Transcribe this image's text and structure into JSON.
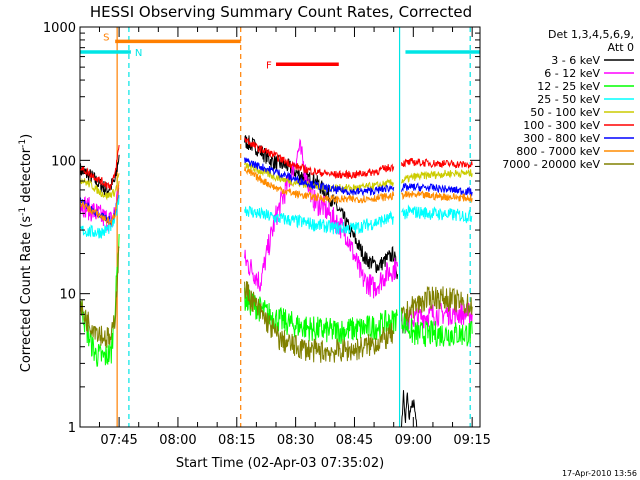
{
  "chart_data": {
    "type": "line",
    "title": "HESSI Observing Summary Count Rates, Corrected",
    "xlabel": "Start Time (02-Apr-03 07:35:02)",
    "ylabel": "Corrected Count Rate (s",
    "ylabel_sup1": "-1",
    "ylabel_mid": " detector",
    "ylabel_sup2": "-1",
    "ylabel_end": ")",
    "yscale": "log",
    "ylim": [
      1,
      1000
    ],
    "xlim": [
      "07:35:02",
      "09:17:00"
    ],
    "x_ticks": [
      "07:45",
      "08:00",
      "08:15",
      "08:30",
      "08:45",
      "09:00",
      "09:15"
    ],
    "y_ticks": [
      "1",
      "10",
      "100",
      "1000"
    ],
    "legend_position": "right",
    "legend_header": [
      "Det 1,3,4,5,6,9,",
      "Att 0"
    ],
    "timestamp": "17-Apr-2010 13:56",
    "flags": [
      {
        "label": "S",
        "start": "07:44:00",
        "end": "08:16:00",
        "value": 780,
        "color": "#ff7f00"
      },
      {
        "label": "N",
        "start": "07:35:02",
        "end": "07:48:00",
        "value": 650,
        "color": "#00e5e5"
      },
      {
        "label": "",
        "start": "08:58:00",
        "end": "09:17:00",
        "value": 650,
        "color": "#00e5e5"
      },
      {
        "label": "F",
        "start": "08:25:00",
        "end": "08:41:00",
        "value": 525,
        "color": "#ff0000"
      }
    ],
    "markers": [
      {
        "time": "07:44:30",
        "color": "#ff7f00",
        "style": "solid"
      },
      {
        "time": "07:47:30",
        "color": "#00e5e5",
        "style": "dashed"
      },
      {
        "time": "08:16:00",
        "color": "#ff7f00",
        "style": "dashed"
      },
      {
        "time": "08:56:30",
        "color": "#00e5e5",
        "style": "solid"
      },
      {
        "time": "09:14:30",
        "color": "#00e5e5",
        "style": "dashed"
      }
    ],
    "series": [
      {
        "name": "3 - 6 keV",
        "color": "#000000",
        "segments": [
          [
            [
              "07:35:02",
              85
            ],
            [
              "07:38",
              75
            ],
            [
              "07:40",
              66
            ],
            [
              "07:42",
              60
            ],
            [
              "07:44",
              70
            ],
            [
              "07:45",
              110
            ]
          ],
          [
            [
              "08:17",
              140
            ],
            [
              "08:20",
              125
            ],
            [
              "08:24",
              98
            ],
            [
              "08:28",
              90
            ],
            [
              "08:31",
              78
            ],
            [
              "08:35",
              70
            ],
            [
              "08:39",
              52
            ],
            [
              "08:42",
              38
            ],
            [
              "08:45",
              26
            ],
            [
              "08:48",
              18
            ],
            [
              "08:51",
              16
            ],
            [
              "08:55",
              20
            ],
            [
              "08:56",
              14
            ]
          ],
          [
            [
              "08:57",
              1
            ],
            [
              "08:57:30",
              1.9
            ],
            [
              "08:58",
              1.2
            ],
            [
              "08:58:30",
              1.7
            ],
            [
              "08:59",
              1.1
            ],
            [
              "09:00",
              1.6
            ],
            [
              "09:01",
              1
            ]
          ]
        ]
      },
      {
        "name": "6 - 12 keV",
        "color": "#ff00ff",
        "segments": [
          [
            [
              "07:35:02",
              48
            ],
            [
              "07:38",
              42
            ],
            [
              "07:41",
              37
            ],
            [
              "07:43",
              35
            ],
            [
              "07:44",
              42
            ],
            [
              "07:45",
              65
            ]
          ],
          [
            [
              "08:17",
              18
            ],
            [
              "08:19",
              15
            ],
            [
              "08:21",
              12
            ],
            [
              "08:23",
              22
            ],
            [
              "08:25",
              38
            ],
            [
              "08:27",
              55
            ],
            [
              "08:29",
              80
            ],
            [
              "08:31",
              125
            ],
            [
              "08:33",
              70
            ],
            [
              "08:35",
              48
            ],
            [
              "08:37",
              45
            ],
            [
              "08:39",
              38
            ],
            [
              "08:41",
              33
            ],
            [
              "08:43",
              28
            ],
            [
              "08:45",
              19
            ],
            [
              "08:47",
              13
            ],
            [
              "08:50",
              11
            ],
            [
              "08:53",
              14
            ],
            [
              "08:56",
              16
            ]
          ],
          [
            [
              "08:57",
              6
            ],
            [
              "09:00",
              6.5
            ],
            [
              "09:05",
              7
            ],
            [
              "09:10",
              7.2
            ],
            [
              "09:15",
              7
            ]
          ]
        ]
      },
      {
        "name": "12 - 25 keV",
        "color": "#00ff00",
        "segments": [
          [
            [
              "07:35:02",
              9
            ],
            [
              "07:37",
              5
            ],
            [
              "07:39",
              3.5
            ],
            [
              "07:41",
              3.3
            ],
            [
              "07:43",
              3.6
            ],
            [
              "07:44",
              8
            ],
            [
              "07:45",
              28
            ]
          ],
          [
            [
              "08:17",
              9
            ],
            [
              "08:20",
              8
            ],
            [
              "08:23",
              7
            ],
            [
              "08:26",
              6.3
            ],
            [
              "08:30",
              5.8
            ],
            [
              "08:35",
              5.4
            ],
            [
              "08:40",
              5.2
            ],
            [
              "08:45",
              5.4
            ],
            [
              "08:50",
              5.6
            ],
            [
              "08:55",
              6.2
            ],
            [
              "08:56",
              7
            ]
          ],
          [
            [
              "08:57",
              6.5
            ],
            [
              "09:00",
              5
            ],
            [
              "09:05",
              5
            ],
            [
              "09:10",
              5
            ],
            [
              "09:15",
              5
            ]
          ]
        ]
      },
      {
        "name": "25 - 50 keV",
        "color": "#00ffff",
        "segments": [
          [
            [
              "07:35:02",
              30
            ],
            [
              "07:38",
              29
            ],
            [
              "07:41",
              29
            ],
            [
              "07:43",
              32
            ],
            [
              "07:44",
              36
            ],
            [
              "07:45",
              55
            ]
          ],
          [
            [
              "08:17",
              43
            ],
            [
              "08:20",
              40
            ],
            [
              "08:25",
              37
            ],
            [
              "08:30",
              35
            ],
            [
              "08:35",
              33
            ],
            [
              "08:40",
              31
            ],
            [
              "08:45",
              31
            ],
            [
              "08:50",
              34
            ],
            [
              "08:55",
              37
            ]
          ],
          [
            [
              "08:57",
              40
            ],
            [
              "09:00",
              41
            ],
            [
              "09:05",
              40
            ],
            [
              "09:10",
              39
            ],
            [
              "09:15",
              38
            ]
          ]
        ]
      },
      {
        "name": "50 - 100 keV",
        "color": "#cccc00",
        "segments": [
          [
            [
              "07:35:02",
              72
            ],
            [
              "07:38",
              65
            ],
            [
              "07:40",
              58
            ],
            [
              "07:42",
              54
            ],
            [
              "07:44",
              58
            ],
            [
              "07:45",
              80
            ]
          ],
          [
            [
              "08:17",
              92
            ],
            [
              "08:20",
              85
            ],
            [
              "08:25",
              75
            ],
            [
              "08:30",
              68
            ],
            [
              "08:35",
              64
            ],
            [
              "08:40",
              62
            ],
            [
              "08:45",
              62
            ],
            [
              "08:50",
              64
            ],
            [
              "08:55",
              68
            ]
          ],
          [
            [
              "08:57",
              70
            ],
            [
              "09:00",
              75
            ],
            [
              "09:05",
              78
            ],
            [
              "09:10",
              80
            ],
            [
              "09:15",
              80
            ]
          ]
        ]
      },
      {
        "name": "100 - 300 keV",
        "color": "#ff0000",
        "segments": [
          [
            [
              "07:35:02",
              88
            ],
            [
              "07:38",
              78
            ],
            [
              "07:41",
              68
            ],
            [
              "07:43",
              64
            ],
            [
              "07:44",
              80
            ],
            [
              "07:45",
              130
            ]
          ],
          [
            [
              "08:17",
              145
            ],
            [
              "08:20",
              125
            ],
            [
              "08:23",
              115
            ],
            [
              "08:27",
              100
            ],
            [
              "08:30",
              90
            ],
            [
              "08:35",
              82
            ],
            [
              "08:40",
              78
            ],
            [
              "08:45",
              78
            ],
            [
              "08:50",
              82
            ],
            [
              "08:55",
              90
            ]
          ],
          [
            [
              "08:57",
              95
            ],
            [
              "09:00",
              97
            ],
            [
              "09:05",
              95
            ],
            [
              "09:10",
              94
            ],
            [
              "09:15",
              92
            ]
          ]
        ]
      },
      {
        "name": "300 - 800 keV",
        "color": "#0000ff",
        "segments": [
          [
            [
              "07:35:02",
              50
            ],
            [
              "07:38",
              43
            ],
            [
              "07:41",
              38
            ],
            [
              "07:43",
              35
            ],
            [
              "07:44",
              40
            ],
            [
              "07:45",
              62
            ]
          ],
          [
            [
              "08:17",
              100
            ],
            [
              "08:20",
              92
            ],
            [
              "08:25",
              82
            ],
            [
              "08:30",
              72
            ],
            [
              "08:35",
              65
            ],
            [
              "08:40",
              60
            ],
            [
              "08:45",
              58
            ],
            [
              "08:50",
              59
            ],
            [
              "08:55",
              63
            ]
          ],
          [
            [
              "08:57",
              62
            ],
            [
              "09:00",
              63
            ],
            [
              "09:05",
              62
            ],
            [
              "09:10",
              60
            ],
            [
              "09:15",
              58
            ]
          ]
        ]
      },
      {
        "name": "800 - 7000 keV",
        "color": "#ff8c00",
        "segments": [
          [
            [
              "07:35:02",
              48
            ],
            [
              "07:38",
              42
            ],
            [
              "07:41",
              37
            ],
            [
              "07:43",
              34
            ],
            [
              "07:44",
              40
            ],
            [
              "07:45",
              70
            ]
          ],
          [
            [
              "08:17",
              85
            ],
            [
              "08:20",
              75
            ],
            [
              "08:25",
              62
            ],
            [
              "08:30",
              56
            ],
            [
              "08:35",
              53
            ],
            [
              "08:40",
              51
            ],
            [
              "08:45",
              51
            ],
            [
              "08:50",
              52
            ],
            [
              "08:55",
              54
            ]
          ],
          [
            [
              "08:57",
              55
            ],
            [
              "09:00",
              55
            ],
            [
              "09:05",
              54
            ],
            [
              "09:10",
              53
            ],
            [
              "09:15",
              52
            ]
          ]
        ]
      },
      {
        "name": "7000 - 20000 keV",
        "color": "#808000",
        "segments": [
          [
            [
              "07:35:02",
              8
            ],
            [
              "07:37",
              6.2
            ],
            [
              "07:39",
              5.5
            ],
            [
              "07:41",
              4.8
            ],
            [
              "07:43",
              4.5
            ],
            [
              "07:44",
              7
            ],
            [
              "07:45",
              22
            ]
          ],
          [
            [
              "08:17",
              11
            ],
            [
              "08:20",
              8
            ],
            [
              "08:23",
              6
            ],
            [
              "08:26",
              4.5
            ],
            [
              "08:30",
              4
            ],
            [
              "08:35",
              3.7
            ],
            [
              "08:40",
              3.7
            ],
            [
              "08:45",
              3.8
            ],
            [
              "08:50",
              4.2
            ],
            [
              "08:55",
              5
            ]
          ],
          [
            [
              "08:57",
              6.5
            ],
            [
              "09:00",
              8
            ],
            [
              "09:05",
              9.5
            ],
            [
              "09:10",
              9
            ],
            [
              "09:15",
              8
            ]
          ]
        ]
      }
    ]
  }
}
